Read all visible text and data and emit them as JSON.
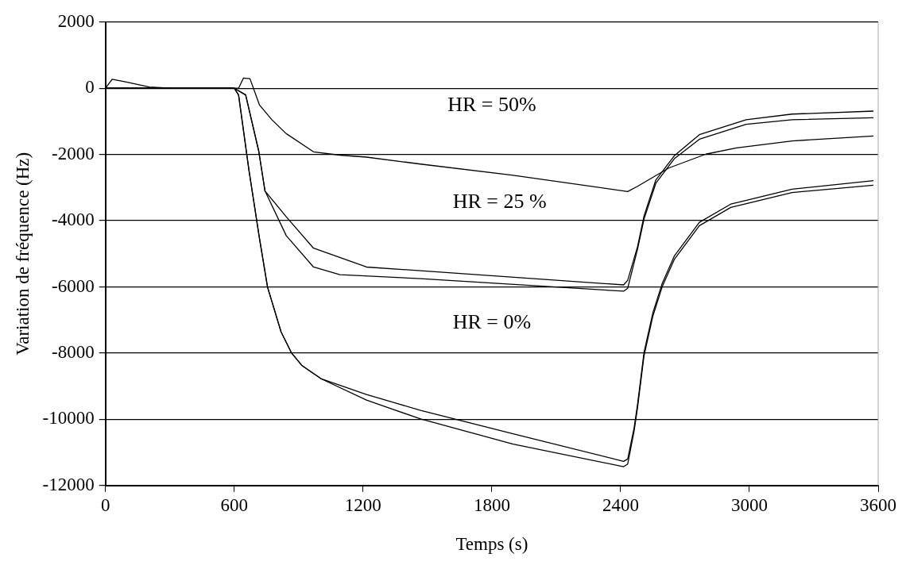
{
  "chart_data": {
    "type": "line",
    "xlabel": "Temps (s)",
    "ylabel": "Variation de fréquence (Hz)",
    "xlim": [
      0,
      3600
    ],
    "xticks": [
      0,
      600,
      1200,
      1800,
      2400,
      3000,
      3600
    ],
    "ylim": [
      -12000,
      2000
    ],
    "yticks": [
      -12000,
      -10000,
      -8000,
      -6000,
      -4000,
      -2000,
      0,
      2000
    ],
    "grid": "y",
    "marker": "none",
    "line_style": "solid",
    "legend": false,
    "annotations": [
      "HR = 50%",
      "HR = 25 %",
      "HR = 0%"
    ],
    "series": [
      {
        "color": "#000000",
        "x": [
          0,
          31,
          102,
          204,
          306,
          600,
          620,
          643,
          673,
          717,
          775,
          842,
          969,
          1092,
          1216,
          1468,
          1899,
          2433,
          2479,
          2624,
          2797,
          2940,
          3199,
          3578
        ],
        "values": [
          0,
          270,
          180,
          40,
          0,
          0,
          0,
          310,
          290,
          -500,
          -950,
          -1370,
          -1920,
          -2020,
          -2080,
          -2290,
          -2630,
          -3120,
          -2960,
          -2410,
          -1990,
          -1800,
          -1590,
          -1440
        ]
      },
      {
        "color": "#000000",
        "x": [
          0,
          600,
          653,
          714,
          743,
          842,
          969,
          1216,
          1468,
          2414,
          2433,
          2479,
          2509,
          2564,
          2650,
          2767,
          2985,
          3199,
          3578
        ],
        "values": [
          0,
          0,
          -200,
          -1900,
          -3100,
          -3880,
          -4830,
          -5400,
          -5510,
          -5940,
          -5800,
          -4780,
          -3860,
          -2770,
          -2040,
          -1400,
          -950,
          -780,
          -690
        ]
      },
      {
        "color": "#000000",
        "x": [
          0,
          600,
          653,
          714,
          743,
          842,
          969,
          1092,
          1468,
          2414,
          2433,
          2479,
          2509,
          2564,
          2650,
          2767,
          2985,
          3199,
          3578
        ],
        "values": [
          0,
          0,
          -200,
          -1900,
          -3100,
          -4450,
          -5400,
          -5630,
          -5750,
          -6130,
          -6040,
          -4850,
          -3950,
          -2870,
          -2130,
          -1540,
          -1090,
          -950,
          -890
        ]
      },
      {
        "color": "#000000",
        "x": [
          0,
          600,
          620,
          668,
          717,
          755,
          818,
          867,
          916,
          1006,
          1216,
          1468,
          1899,
          2414,
          2433,
          2463,
          2479,
          2509,
          2550,
          2594,
          2650,
          2767,
          2913,
          3199,
          3578
        ],
        "values": [
          0,
          0,
          -200,
          -2460,
          -4520,
          -6010,
          -7360,
          -8000,
          -8380,
          -8780,
          -9250,
          -9730,
          -10440,
          -11270,
          -11200,
          -10250,
          -9540,
          -7980,
          -6790,
          -5890,
          -5070,
          -4050,
          -3500,
          -3050,
          -2790
        ]
      },
      {
        "color": "#000000",
        "x": [
          0,
          600,
          620,
          668,
          717,
          755,
          818,
          867,
          916,
          1006,
          1216,
          1468,
          1899,
          2414,
          2433,
          2463,
          2479,
          2509,
          2550,
          2594,
          2650,
          2767,
          2913,
          3199,
          3578
        ],
        "values": [
          0,
          0,
          -200,
          -2460,
          -4520,
          -6010,
          -7360,
          -8000,
          -8380,
          -8780,
          -9420,
          -9990,
          -10750,
          -11430,
          -11350,
          -10350,
          -9640,
          -8080,
          -6890,
          -5990,
          -5170,
          -4150,
          -3600,
          -3150,
          -2930
        ]
      }
    ]
  }
}
